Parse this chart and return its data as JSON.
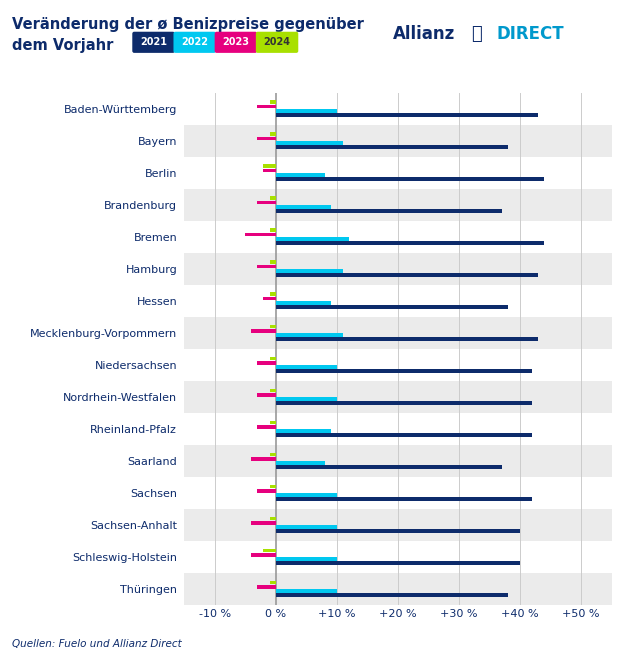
{
  "title_line1": "Veränderung der ø Benizpreise gegenüber",
  "title_line2": "dem Vorjahr",
  "source": "Quellen: Fuelo und Allianz Direct",
  "years": [
    "2021",
    "2022",
    "2023",
    "2024"
  ],
  "year_colors": [
    "#0d2b6b",
    "#00c8f0",
    "#e6007e",
    "#a8e000"
  ],
  "states": [
    "Baden-Württemberg",
    "Bayern",
    "Berlin",
    "Brandenburg",
    "Bremen",
    "Hamburg",
    "Hessen",
    "Mecklenburg-Vorpommern",
    "Niedersachsen",
    "Nordrhein-Westfalen",
    "Rheinland-Pfalz",
    "Saarland",
    "Sachsen",
    "Sachsen-Anhalt",
    "Schleswig-Holstein",
    "Thüringen"
  ],
  "values": {
    "2021": [
      43,
      38,
      44,
      37,
      44,
      43,
      38,
      43,
      42,
      42,
      42,
      37,
      42,
      40,
      40,
      38
    ],
    "2022": [
      10,
      11,
      8,
      9,
      12,
      11,
      9,
      11,
      10,
      10,
      9,
      8,
      10,
      10,
      10,
      10
    ],
    "2023": [
      -3,
      -3,
      -2,
      -3,
      -5,
      -3,
      -2,
      -4,
      -3,
      -3,
      -3,
      -4,
      -3,
      -4,
      -4,
      -3
    ],
    "2024": [
      -1,
      -1,
      -2,
      -1,
      -1,
      -1,
      -1,
      -1,
      -1,
      -1,
      -1,
      -1,
      -1,
      -1,
      -2,
      -1
    ]
  },
  "xlim": [
    -15,
    55
  ],
  "xticks": [
    -10,
    0,
    10,
    20,
    30,
    40,
    50
  ],
  "xtick_labels": [
    "-10 %",
    "0 %",
    "+10 %",
    "+20 %",
    "+30 %",
    "+40 %",
    "+50 %"
  ],
  "bg_colors": [
    "#ffffff",
    "#ebebeb"
  ],
  "bar_height": 0.13,
  "title_color": "#0d2b6b",
  "axis_color": "#0d2b6b",
  "label_color": "#0d2b6b",
  "source_color": "#0d2b6b",
  "grid_color": "#cccccc"
}
